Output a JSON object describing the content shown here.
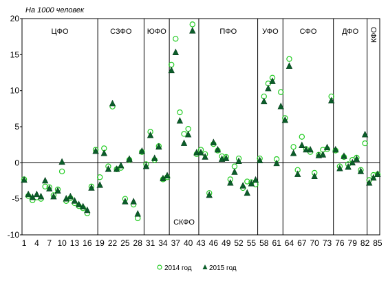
{
  "chart_data": {
    "type": "scatter",
    "ylabel": "На 1000 человек",
    "ylim": [
      -10,
      20
    ],
    "yticks": [
      -10,
      -5,
      0,
      5,
      10,
      15,
      20
    ],
    "xlim": [
      0.5,
      85.5
    ],
    "xticks": [
      1,
      4,
      7,
      10,
      13,
      16,
      19,
      22,
      25,
      28,
      31,
      34,
      37,
      40,
      43,
      46,
      49,
      52,
      55,
      58,
      61,
      64,
      67,
      70,
      73,
      76,
      79,
      82,
      85
    ],
    "grid": false,
    "legend_position": "bottom",
    "regions": [
      {
        "label": "ЦФО",
        "start": 1,
        "end": 18,
        "label_pos": "top"
      },
      {
        "label": "СЗФО",
        "start": 19,
        "end": 29,
        "label_pos": "top"
      },
      {
        "label": "ЮФО",
        "start": 30,
        "end": 35,
        "label_pos": "top"
      },
      {
        "label": "СКФО",
        "start": 36,
        "end": 42,
        "label_pos": "bottom"
      },
      {
        "label": "ПФО",
        "start": 43,
        "end": 56,
        "label_pos": "top"
      },
      {
        "label": "УФО",
        "start": 57,
        "end": 62,
        "label_pos": "top"
      },
      {
        "label": "СФО",
        "start": 63,
        "end": 74,
        "label_pos": "top"
      },
      {
        "label": "ДФО",
        "start": 75,
        "end": 82,
        "label_pos": "top"
      },
      {
        "label": "КФО",
        "start": 83,
        "end": 85,
        "label_pos": "top-vertical"
      }
    ],
    "series": [
      {
        "name": "2014 год",
        "marker": "circle",
        "color": "#22cc22",
        "values": [
          -2.3,
          -4.6,
          -5.2,
          -4.8,
          -5.0,
          -3.3,
          -3.4,
          -4.5,
          -3.7,
          -1.2,
          -5.3,
          -4.9,
          -5.6,
          -6.0,
          -6.3,
          -7.0,
          -3.3,
          1.8,
          -2.0,
          2.0,
          -0.5,
          7.8,
          -0.9,
          -0.7,
          -5.0,
          0.4,
          -5.8,
          -7.7,
          1.5,
          -0.2,
          4.3,
          0.4,
          2.3,
          -2.3,
          -2.0,
          13.6,
          17.2,
          7.0,
          4.0,
          4.7,
          19.2,
          1.2,
          1.8,
          1.2,
          -4.2,
          2.6,
          1.7,
          0.9,
          0.8,
          -2.3,
          -0.5,
          0.6,
          -3.5,
          -2.6,
          -2.7,
          -3.0,
          0.6,
          9.2,
          11.0,
          11.8,
          0.5,
          9.8,
          6.2,
          14.4,
          2.2,
          -1.0,
          3.6,
          1.9,
          1.5,
          -1.4,
          1.1,
          1.8,
          1.9,
          9.2,
          1.7,
          -0.5,
          0.8,
          -0.2,
          0.4,
          0.7,
          -1.0,
          2.7,
          -2.4,
          -1.7,
          -1.6
        ]
      },
      {
        "name": "2015 год",
        "marker": "triangle",
        "color": "#0b5e2a",
        "values": [
          -2.4,
          -4.4,
          -4.8,
          -4.4,
          -4.7,
          -2.5,
          -3.6,
          -4.7,
          -3.9,
          0.1,
          -5.0,
          -4.7,
          -5.3,
          -5.8,
          -6.1,
          -6.6,
          -3.5,
          1.6,
          -3.1,
          1.3,
          -0.9,
          8.2,
          -0.9,
          -0.4,
          -5.4,
          0.5,
          -5.4,
          -7.1,
          1.6,
          -0.5,
          3.8,
          0.6,
          2.2,
          -2.2,
          -1.8,
          12.8,
          15.3,
          5.8,
          2.7,
          3.9,
          18.3,
          1.4,
          1.4,
          0.8,
          -4.5,
          2.8,
          1.8,
          0.5,
          0.6,
          -2.8,
          -1.3,
          0.2,
          -3.2,
          -4.2,
          -2.9,
          -2.4,
          0.3,
          8.5,
          10.3,
          11.3,
          -0.1,
          7.8,
          5.9,
          13.4,
          1.3,
          -1.6,
          2.4,
          1.8,
          1.8,
          -1.9,
          1.0,
          1.1,
          2.1,
          8.6,
          1.8,
          -0.8,
          0.9,
          -0.6,
          0.0,
          0.5,
          -1.2,
          3.9,
          -2.8,
          -2.1,
          -1.6
        ]
      }
    ]
  }
}
